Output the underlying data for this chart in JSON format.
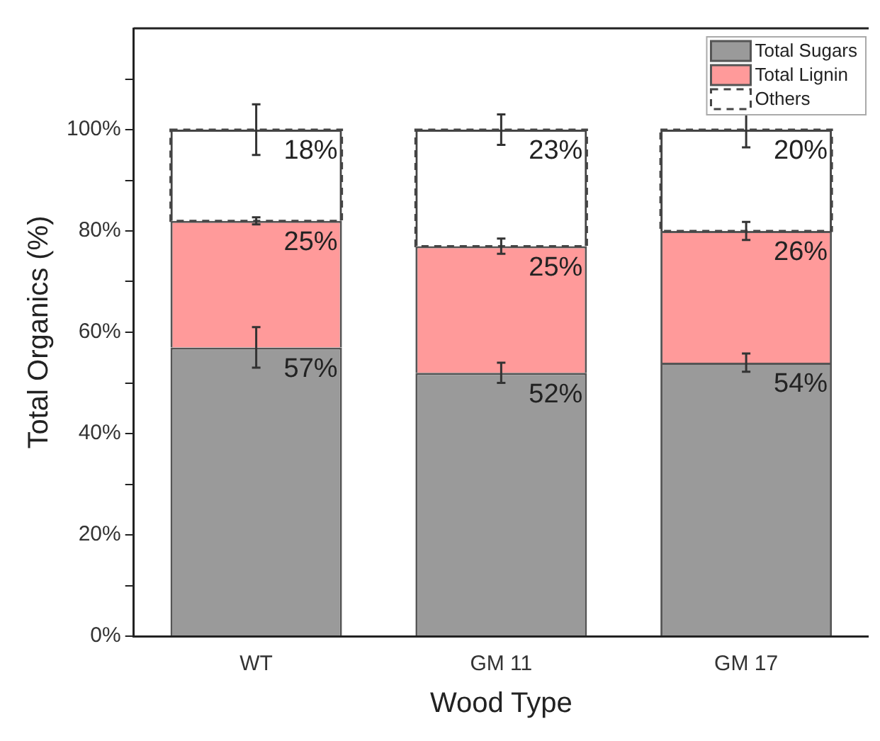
{
  "chart_data": {
    "type": "bar",
    "xlabel": "Wood Type",
    "ylabel": "Total Organics (%)",
    "categories": [
      "WT",
      "GM 11",
      "GM 17"
    ],
    "stacked": true,
    "series": [
      {
        "name": "Total Sugars",
        "color": "#9a9a9a",
        "values": [
          57,
          52,
          54
        ],
        "errors": [
          4,
          2,
          1.8
        ],
        "value_labels": [
          "57%",
          "52%",
          "54%"
        ]
      },
      {
        "name": "Total Lignin",
        "color": "#ff9a9a",
        "values": [
          25,
          25,
          26
        ],
        "errors": [
          0.7,
          1.5,
          1.8
        ],
        "value_labels": [
          "25%",
          "25%",
          "26%"
        ]
      },
      {
        "name": "Others",
        "color": "#444444",
        "values": [
          18,
          23,
          20
        ],
        "errors": [
          5,
          3,
          3.5
        ],
        "value_labels": [
          "18%",
          "23%",
          "20%"
        ],
        "line_style": "dashed"
      }
    ],
    "ylim": [
      0,
      120
    ],
    "yticks": [
      {
        "value": 0,
        "label": "0%"
      },
      {
        "value": 10,
        "label": null
      },
      {
        "value": 20,
        "label": "20%"
      },
      {
        "value": 30,
        "label": null
      },
      {
        "value": 40,
        "label": "40%"
      },
      {
        "value": 50,
        "label": null
      },
      {
        "value": 60,
        "label": "60%"
      },
      {
        "value": 70,
        "label": null
      },
      {
        "value": 80,
        "label": "80%"
      },
      {
        "value": 90,
        "label": null
      },
      {
        "value": 100,
        "label": "100%"
      },
      {
        "value": 110,
        "label": null
      }
    ],
    "grid": false,
    "legend": "top right"
  }
}
